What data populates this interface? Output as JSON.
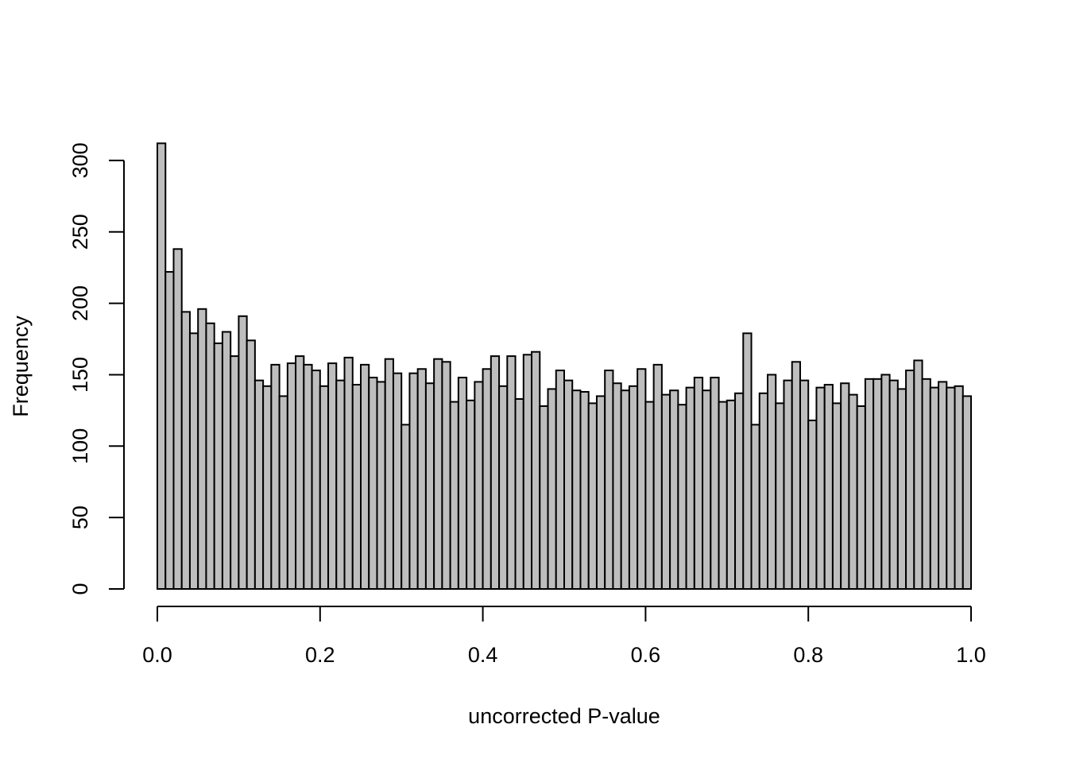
{
  "chart_data": {
    "type": "bar",
    "title": "",
    "xlabel": "uncorrected P-value",
    "ylabel": "Frequency",
    "bin_width": 0.01,
    "x_range": [
      0,
      1
    ],
    "xlim": [
      0,
      1
    ],
    "ylim": [
      0,
      312
    ],
    "x_ticks": [
      "0.0",
      "0.2",
      "0.4",
      "0.6",
      "0.8",
      "1.0"
    ],
    "y_ticks": [
      "0",
      "50",
      "100",
      "150",
      "200",
      "250",
      "300"
    ],
    "grid": false,
    "legend": "none",
    "bar_color": "#bebebe",
    "edge_color": "#000000",
    "values": [
      312,
      222,
      238,
      194,
      179,
      196,
      186,
      172,
      180,
      163,
      191,
      174,
      146,
      142,
      157,
      135,
      158,
      163,
      157,
      153,
      142,
      158,
      146,
      162,
      143,
      157,
      148,
      145,
      161,
      151,
      115,
      151,
      154,
      144,
      161,
      159,
      131,
      148,
      132,
      145,
      154,
      163,
      142,
      163,
      133,
      164,
      166,
      128,
      140,
      153,
      146,
      139,
      138,
      130,
      135,
      153,
      144,
      139,
      142,
      154,
      131,
      157,
      136,
      139,
      129,
      141,
      148,
      139,
      148,
      131,
      132,
      137,
      179,
      115,
      137,
      150,
      130,
      146,
      159,
      146,
      118,
      141,
      143,
      130,
      144,
      136,
      128,
      147,
      147,
      150,
      146,
      140,
      153,
      160,
      147,
      141,
      145,
      141,
      142,
      135
    ]
  }
}
